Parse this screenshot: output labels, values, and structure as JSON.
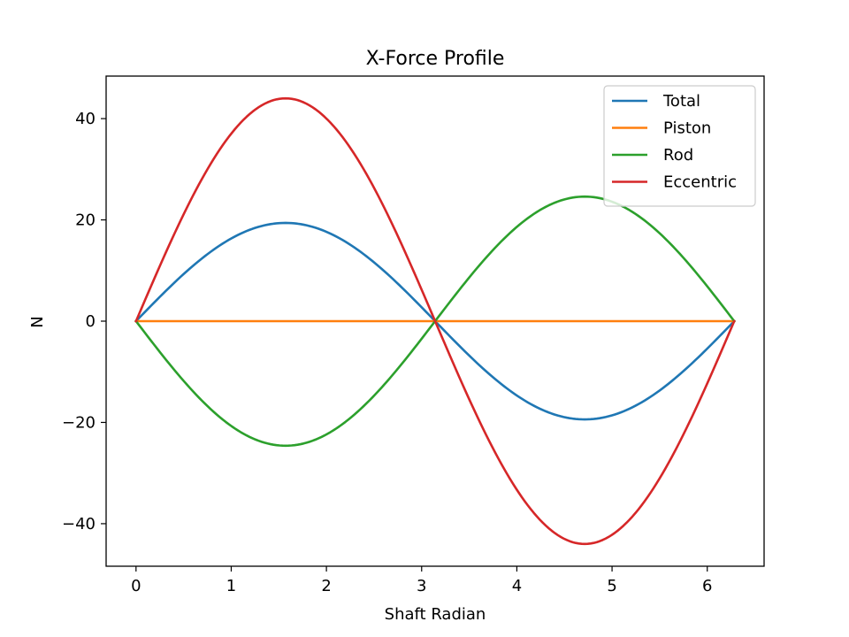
{
  "chart_data": {
    "type": "line",
    "title": "X-Force Profile",
    "xlabel": "Shaft Radian",
    "ylabel": "N",
    "xlim": [
      -0.314,
      6.597
    ],
    "ylim": [
      -48.4,
      48.4
    ],
    "xticks": [
      0,
      1,
      2,
      3,
      4,
      5,
      6
    ],
    "xtick_labels": [
      "0",
      "1",
      "2",
      "3",
      "4",
      "5",
      "6"
    ],
    "yticks": [
      -40,
      -20,
      0,
      20,
      40
    ],
    "ytick_labels": [
      "−40",
      "−20",
      "0",
      "20",
      "40"
    ],
    "grid": false,
    "legend_position": "top-right",
    "x_range": [
      0,
      6.283
    ],
    "series": [
      {
        "name": "Total",
        "color": "#1f77b4",
        "function": "sin",
        "amplitude": 19.4
      },
      {
        "name": "Piston",
        "color": "#ff7f0e",
        "function": "zero",
        "amplitude": 0
      },
      {
        "name": "Rod",
        "color": "#2ca02c",
        "function": "sin",
        "amplitude": -24.6
      },
      {
        "name": "Eccentric",
        "color": "#d62728",
        "function": "sin",
        "amplitude": 44.0
      }
    ]
  }
}
